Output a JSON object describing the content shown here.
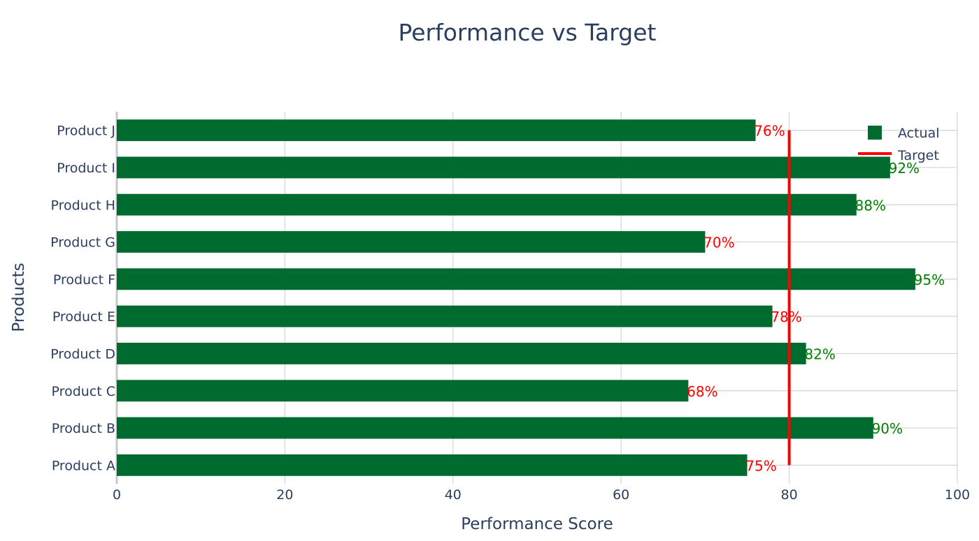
{
  "chart_data": {
    "type": "bar",
    "orientation": "horizontal",
    "title": "Performance vs Target",
    "xlabel": "Performance Score",
    "ylabel": "Products",
    "categories": [
      "Product A",
      "Product B",
      "Product C",
      "Product D",
      "Product E",
      "Product F",
      "Product G",
      "Product H",
      "Product I",
      "Product J"
    ],
    "series": [
      {
        "name": "Actual",
        "type": "bar",
        "values": [
          75,
          90,
          68,
          82,
          78,
          95,
          70,
          88,
          92,
          76
        ],
        "color": "#006b2e"
      },
      {
        "name": "Target",
        "type": "line",
        "value": 80,
        "color": "#ff0000"
      }
    ],
    "data_labels": [
      "75%",
      "90%",
      "68%",
      "82%",
      "78%",
      "95%",
      "70%",
      "88%",
      "92%",
      "76%"
    ],
    "label_colors": {
      "above_target": "#008000",
      "below_target": "#ff0000"
    },
    "xlim": [
      0,
      100
    ],
    "xticks": [
      0,
      20,
      40,
      60,
      80,
      100
    ],
    "grid": true,
    "legend": {
      "position": "top-right",
      "entries": [
        "Actual",
        "Target"
      ]
    }
  }
}
